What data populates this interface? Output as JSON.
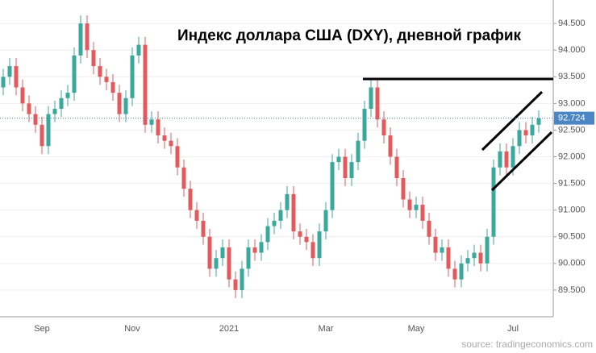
{
  "chart_data": {
    "type": "candlestick",
    "title": "Индекс доллара США (DXY), дневной график",
    "source": "source: tradingeconomics.com",
    "categories": [
      null,
      null,
      null,
      null,
      null,
      null,
      "Sep",
      null,
      null,
      null,
      null,
      null,
      null,
      null,
      null,
      null,
      null,
      null,
      null,
      null,
      "Nov",
      null,
      null,
      null,
      null,
      null,
      null,
      null,
      null,
      null,
      null,
      null,
      null,
      null,
      null,
      "2021",
      null,
      null,
      null,
      null,
      null,
      null,
      null,
      null,
      null,
      null,
      null,
      null,
      null,
      null,
      "Mar",
      null,
      null,
      null,
      null,
      null,
      null,
      null,
      null,
      null,
      null,
      null,
      null,
      null,
      "May",
      null,
      null,
      null,
      null,
      null,
      null,
      null,
      null,
      null,
      null,
      null,
      null,
      null,
      null,
      "Jul",
      null,
      null,
      null,
      null
    ],
    "open": [
      93.3,
      93.5,
      93.7,
      93.3,
      93.0,
      92.8,
      92.6,
      92.2,
      92.8,
      92.9,
      93.1,
      93.2,
      93.9,
      94.5,
      94.0,
      93.7,
      93.5,
      93.4,
      93.2,
      92.8,
      93.1,
      93.9,
      94.1,
      92.6,
      92.7,
      92.4,
      92.3,
      92.2,
      91.8,
      91.4,
      91.0,
      90.8,
      90.5,
      89.9,
      90.1,
      90.3,
      89.7,
      89.5,
      89.9,
      90.3,
      90.2,
      90.4,
      90.7,
      90.8,
      91.0,
      91.3,
      90.6,
      90.5,
      90.4,
      90.1,
      90.6,
      91.0,
      91.9,
      92.0,
      91.6,
      91.9,
      92.3,
      92.9,
      93.3,
      92.7,
      92.4,
      92.0,
      91.6,
      91.2,
      91.0,
      91.1,
      90.8,
      90.5,
      90.2,
      90.3,
      89.9,
      89.7,
      90.0,
      90.1,
      90.2,
      90.0,
      90.5,
      91.8,
      92.1,
      91.8,
      92.2,
      92.5,
      92.4,
      92.6
    ],
    "high": [
      93.65,
      93.85,
      93.85,
      93.45,
      93.15,
      92.95,
      92.75,
      92.95,
      93.05,
      93.25,
      93.35,
      94.05,
      94.65,
      94.65,
      94.15,
      93.85,
      93.65,
      93.55,
      93.35,
      93.25,
      94.05,
      94.25,
      94.25,
      92.85,
      92.85,
      92.55,
      92.45,
      92.35,
      91.95,
      91.55,
      91.15,
      90.95,
      90.65,
      90.25,
      90.45,
      90.45,
      89.85,
      90.05,
      90.45,
      90.45,
      90.55,
      90.85,
      90.95,
      91.15,
      91.45,
      91.45,
      90.75,
      90.65,
      90.55,
      90.75,
      91.15,
      92.05,
      92.15,
      92.15,
      92.05,
      92.45,
      93.05,
      93.45,
      93.45,
      92.85,
      92.55,
      92.15,
      91.75,
      91.35,
      91.25,
      91.25,
      90.95,
      90.65,
      90.45,
      90.45,
      90.05,
      90.15,
      90.25,
      90.35,
      90.35,
      90.65,
      91.95,
      92.25,
      92.25,
      92.35,
      92.65,
      92.65,
      92.75,
      92.87
    ],
    "low": [
      93.15,
      93.35,
      93.15,
      92.85,
      92.65,
      92.45,
      92.05,
      92.05,
      92.65,
      92.75,
      92.95,
      93.05,
      93.75,
      93.85,
      93.55,
      93.35,
      93.25,
      93.05,
      92.65,
      92.65,
      92.95,
      93.75,
      92.45,
      92.45,
      92.25,
      92.15,
      92.05,
      91.65,
      91.25,
      90.85,
      90.65,
      90.35,
      89.75,
      89.75,
      89.95,
      89.55,
      89.35,
      89.35,
      89.75,
      90.05,
      90.05,
      90.25,
      90.55,
      90.65,
      90.85,
      90.45,
      90.35,
      90.25,
      89.95,
      89.95,
      90.45,
      90.85,
      91.75,
      91.45,
      91.45,
      91.75,
      92.15,
      92.75,
      92.55,
      92.25,
      91.85,
      91.45,
      91.05,
      90.85,
      90.85,
      90.65,
      90.35,
      90.05,
      90.05,
      89.75,
      89.55,
      89.55,
      89.85,
      89.95,
      89.85,
      89.85,
      90.35,
      91.65,
      91.65,
      91.65,
      92.05,
      92.25,
      92.25,
      92.45
    ],
    "close": [
      93.5,
      93.7,
      93.3,
      93.0,
      92.8,
      92.6,
      92.2,
      92.8,
      92.9,
      93.1,
      93.2,
      93.9,
      94.5,
      94.0,
      93.7,
      93.5,
      93.4,
      93.2,
      92.8,
      93.1,
      93.9,
      94.1,
      92.6,
      92.7,
      92.4,
      92.3,
      92.2,
      91.8,
      91.4,
      91.0,
      90.8,
      90.5,
      89.9,
      90.1,
      90.3,
      89.7,
      89.5,
      89.9,
      90.3,
      90.2,
      90.4,
      90.7,
      90.8,
      91.0,
      91.3,
      90.6,
      90.5,
      90.4,
      90.1,
      90.6,
      91.0,
      91.9,
      92.0,
      91.6,
      91.9,
      92.3,
      92.9,
      93.3,
      92.7,
      92.4,
      92.0,
      91.6,
      91.2,
      91.0,
      91.1,
      90.8,
      90.5,
      90.2,
      90.3,
      89.9,
      89.7,
      90.0,
      90.1,
      90.2,
      90.0,
      90.5,
      91.8,
      92.1,
      91.8,
      92.2,
      92.5,
      92.4,
      92.6,
      92.72
    ],
    "up_color": "#3aa89b",
    "down_color": "#e35a5e",
    "last": {
      "value": 92.724,
      "label": "92.724"
    },
    "last_color": "#4a86c5",
    "ylim": [
      89.0,
      94.94
    ],
    "yticks": [
      {
        "value": 89.5,
        "label": "89.500"
      },
      {
        "value": 90.0,
        "label": "90.000"
      },
      {
        "value": 90.5,
        "label": "90.500"
      },
      {
        "value": 91.0,
        "label": "91.000"
      },
      {
        "value": 91.5,
        "label": "91.500"
      },
      {
        "value": 92.0,
        "label": "92.000"
      },
      {
        "value": 92.5,
        "label": "92.500"
      },
      {
        "value": 93.0,
        "label": "93.000"
      },
      {
        "value": 93.5,
        "label": "93.500"
      },
      {
        "value": 94.0,
        "label": "94.000"
      },
      {
        "value": 94.5,
        "label": "94.500"
      }
    ],
    "grid": true
  }
}
